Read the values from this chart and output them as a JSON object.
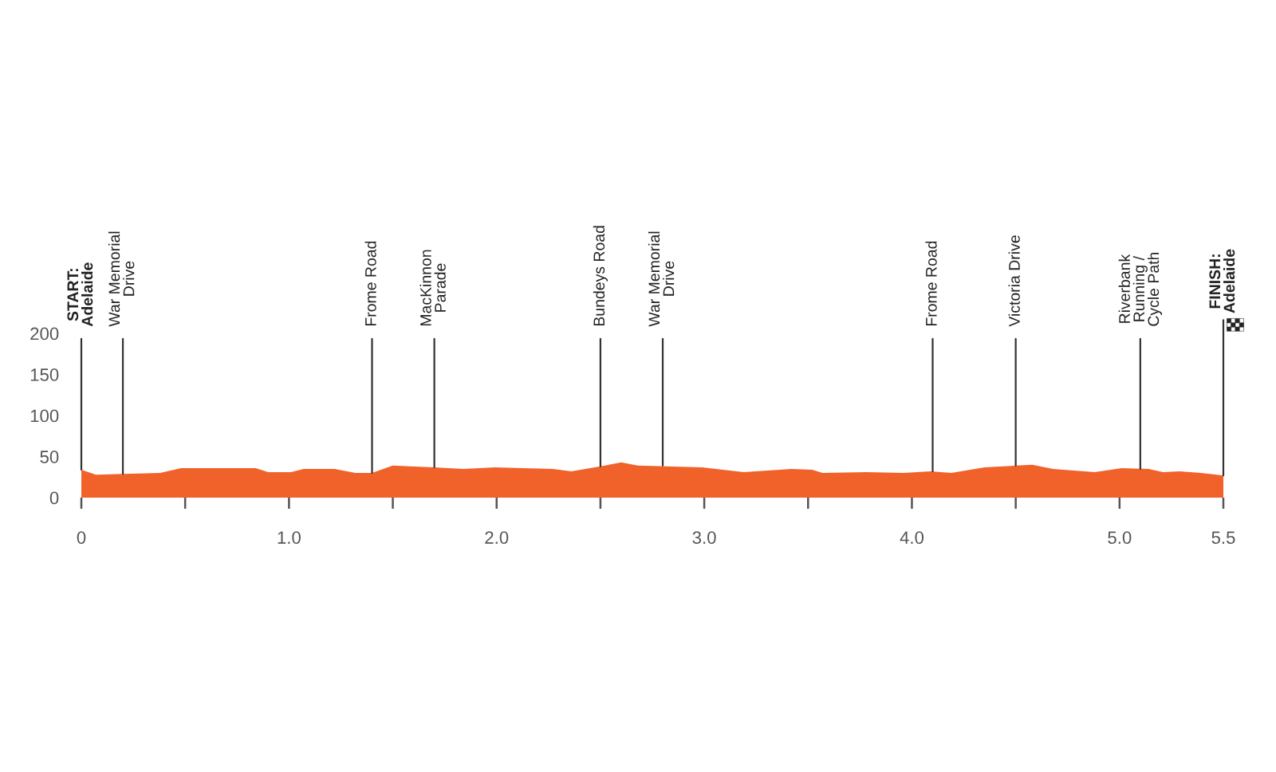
{
  "chart_data": {
    "type": "area",
    "color": "#f0622a",
    "x": [
      0,
      0.07,
      0.2,
      0.38,
      0.48,
      0.84,
      0.9,
      1.01,
      1.07,
      1.22,
      1.32,
      1.4,
      1.5,
      1.7,
      1.84,
      1.99,
      2.27,
      2.36,
      2.5,
      2.6,
      2.68,
      2.99,
      3.19,
      3.42,
      3.52,
      3.57,
      3.78,
      3.96,
      4.09,
      4.19,
      4.35,
      4.5,
      4.58,
      4.68,
      4.88,
      5.01,
      5.14,
      5.21,
      5.29,
      5.39,
      5.5
    ],
    "values": [
      34,
      28,
      29,
      30,
      36,
      36,
      31,
      31,
      35,
      35,
      30,
      30,
      39,
      37,
      35,
      37,
      35,
      32,
      38,
      43,
      39,
      37,
      31,
      35,
      34,
      30,
      31,
      30,
      32,
      30,
      37,
      39,
      40,
      35,
      31,
      36,
      35,
      31,
      32,
      30,
      27
    ],
    "xlim": [
      0,
      5.5
    ],
    "ylim": [
      0,
      200
    ],
    "xticks": [
      0,
      {
        "value": 0.5,
        "label": null
      },
      {
        "value": 1,
        "label": "1.0"
      },
      {
        "value": 1.5,
        "label": null
      },
      {
        "value": 2,
        "label": "2.0"
      },
      {
        "value": 2.5,
        "label": null
      },
      {
        "value": 3,
        "label": "3.0"
      },
      {
        "value": 3.5,
        "label": null
      },
      {
        "value": 4,
        "label": "4.0"
      },
      {
        "value": 4.5,
        "label": null
      },
      {
        "value": 5,
        "label": "5.0"
      },
      5.5
    ],
    "yticks": [
      0,
      50,
      100,
      150,
      200
    ],
    "annotations": [
      {
        "text": "START:\nAdelaide",
        "x": 0,
        "y": 34
      },
      {
        "text": "War Memorial\nDrive",
        "x": 0.2,
        "y": 29
      },
      {
        "text": "Frome Road",
        "x": 1.4,
        "y": 30
      },
      {
        "text": "MacKinnon\nParade",
        "x": 1.7,
        "y": 37
      },
      {
        "text": "Bundeys Road",
        "x": 2.5,
        "y": 38
      },
      {
        "text": "War Memorial\nDrive",
        "x": 2.8,
        "y": 39
      },
      {
        "text": "Frome Road",
        "x": 4.1,
        "y": 32
      },
      {
        "text": "Victoria Drive",
        "x": 4.5,
        "y": 39
      },
      {
        "text": "Riverbank\nRunning /\nCycle Path",
        "x": 5.1,
        "y": 35
      },
      {
        "text": "FINISH:\nAdelaide",
        "x": 5.5,
        "y": 27
      }
    ]
  }
}
